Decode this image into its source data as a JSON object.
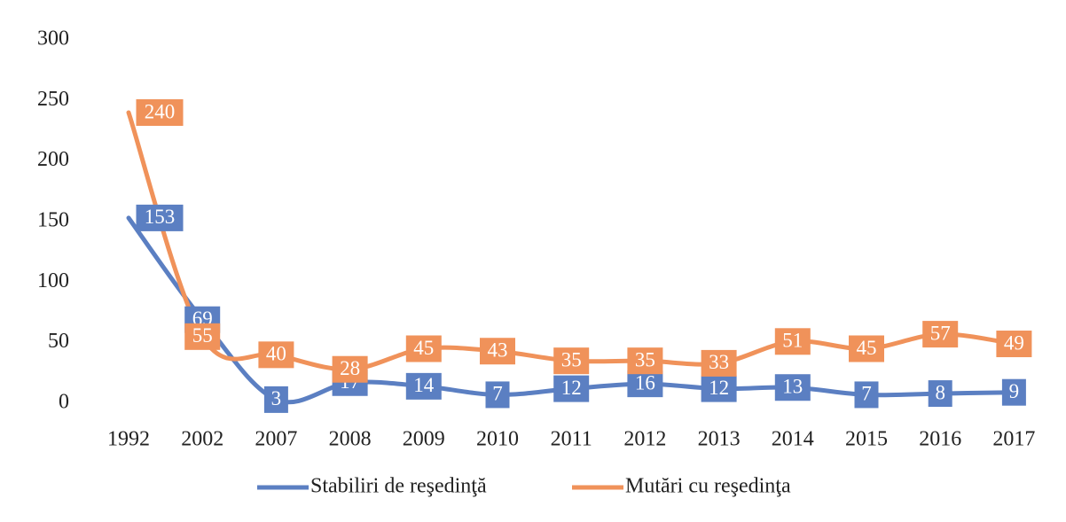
{
  "chart_data": {
    "type": "line",
    "categories": [
      "1992",
      "2002",
      "2007",
      "2008",
      "2009",
      "2010",
      "2011",
      "2012",
      "2013",
      "2014",
      "2015",
      "2016",
      "2017"
    ],
    "series": [
      {
        "name": "Stabiliri de reşedinţă",
        "color": "#5b7fc2",
        "values": [
          153,
          69,
          3,
          17,
          14,
          7,
          12,
          16,
          12,
          13,
          7,
          8,
          9
        ]
      },
      {
        "name": "Mutări cu reşedinţa",
        "color": "#f0925a",
        "values": [
          240,
          55,
          40,
          28,
          45,
          43,
          35,
          35,
          33,
          51,
          45,
          57,
          49
        ]
      }
    ],
    "ylim": [
      0,
      300
    ],
    "yticks": [
      0,
      50,
      100,
      150,
      200,
      250,
      300
    ],
    "grid": false,
    "legend": "bottom"
  }
}
